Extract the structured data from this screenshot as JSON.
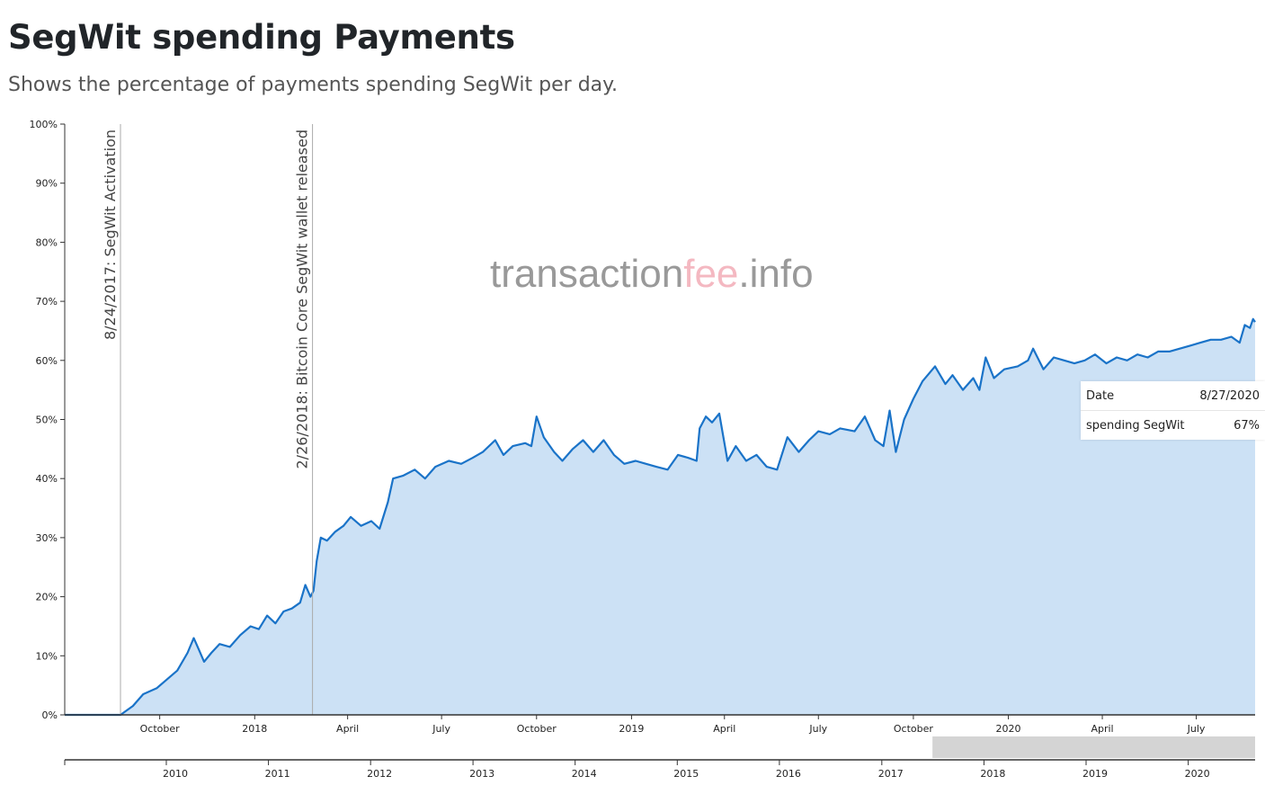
{
  "header": {
    "title": "SegWit spending Payments",
    "subtitle": "Shows the percentage of payments spending SegWit per day."
  },
  "watermark": {
    "part1": "transaction",
    "part2": "fee",
    "part3": ".info",
    "color_main": "#999999",
    "color_accent": "#f4b8c1"
  },
  "tooltip": {
    "date_label": "Date",
    "date_value": "8/27/2020",
    "series_label": "spending SegWit",
    "series_value": "67%"
  },
  "chart_data": {
    "type": "area",
    "title": "SegWit spending Payments",
    "subtitle": "Shows the percentage of payments spending SegWit per day.",
    "xlabel": "",
    "ylabel": "",
    "xlim": [
      "2017-07-01",
      "2020-08-27"
    ],
    "ylim": [
      0,
      100
    ],
    "grid": false,
    "y_ticks": [
      "0%",
      "10%",
      "20%",
      "30%",
      "40%",
      "50%",
      "60%",
      "70%",
      "80%",
      "90%",
      "100%"
    ],
    "x_ticks": [
      {
        "date": "2017-10-01",
        "label": "October"
      },
      {
        "date": "2018-01-01",
        "label": "2018"
      },
      {
        "date": "2018-04-01",
        "label": "April"
      },
      {
        "date": "2018-07-01",
        "label": "July"
      },
      {
        "date": "2018-10-01",
        "label": "October"
      },
      {
        "date": "2019-01-01",
        "label": "2019"
      },
      {
        "date": "2019-04-01",
        "label": "April"
      },
      {
        "date": "2019-07-01",
        "label": "July"
      },
      {
        "date": "2019-10-01",
        "label": "October"
      },
      {
        "date": "2020-01-01",
        "label": "2020"
      },
      {
        "date": "2020-04-01",
        "label": "April"
      },
      {
        "date": "2020-07-01",
        "label": "July"
      }
    ],
    "navigator": {
      "ticks": [
        "2010",
        "2011",
        "2012",
        "2013",
        "2014",
        "2015",
        "2016",
        "2017",
        "2018",
        "2019",
        "2020"
      ],
      "range": [
        "2009-01-03",
        "2020-08-27"
      ],
      "selected": [
        "2017-07-01",
        "2020-08-27"
      ]
    },
    "events": [
      {
        "date": "2017-08-24",
        "label": "8/24/2017: SegWit Activation"
      },
      {
        "date": "2018-02-26",
        "label": "2/26/2018: Bitcoin Core SegWit wallet released"
      }
    ],
    "series": [
      {
        "name": "spending SegWit",
        "color": "#1a73c8",
        "fill": "#cce1f5",
        "points": [
          [
            "2017-07-01",
            0
          ],
          [
            "2017-08-24",
            0
          ],
          [
            "2017-09-05",
            1.5
          ],
          [
            "2017-09-15",
            3.5
          ],
          [
            "2017-09-28",
            4.5
          ],
          [
            "2017-10-08",
            6
          ],
          [
            "2017-10-18",
            7.5
          ],
          [
            "2017-10-28",
            10.5
          ],
          [
            "2017-11-03",
            13
          ],
          [
            "2017-11-08",
            11
          ],
          [
            "2017-11-13",
            9
          ],
          [
            "2017-11-20",
            10.5
          ],
          [
            "2017-11-28",
            12
          ],
          [
            "2017-12-08",
            11.5
          ],
          [
            "2017-12-18",
            13.5
          ],
          [
            "2017-12-28",
            15
          ],
          [
            "2018-01-05",
            14.5
          ],
          [
            "2018-01-13",
            16.8
          ],
          [
            "2018-01-21",
            15.5
          ],
          [
            "2018-01-29",
            17.5
          ],
          [
            "2018-02-06",
            18
          ],
          [
            "2018-02-14",
            19
          ],
          [
            "2018-02-19",
            22
          ],
          [
            "2018-02-24",
            20
          ],
          [
            "2018-02-27",
            21
          ],
          [
            "2018-03-02",
            26
          ],
          [
            "2018-03-06",
            30
          ],
          [
            "2018-03-12",
            29.5
          ],
          [
            "2018-03-20",
            31
          ],
          [
            "2018-03-28",
            32
          ],
          [
            "2018-04-04",
            33.5
          ],
          [
            "2018-04-14",
            32
          ],
          [
            "2018-04-24",
            32.8
          ],
          [
            "2018-05-02",
            31.5
          ],
          [
            "2018-05-10",
            36
          ],
          [
            "2018-05-15",
            40
          ],
          [
            "2018-05-25",
            40.5
          ],
          [
            "2018-06-05",
            41.5
          ],
          [
            "2018-06-15",
            40
          ],
          [
            "2018-06-25",
            42
          ],
          [
            "2018-07-08",
            43
          ],
          [
            "2018-07-20",
            42.5
          ],
          [
            "2018-07-31",
            43.5
          ],
          [
            "2018-08-10",
            44.5
          ],
          [
            "2018-08-22",
            46.5
          ],
          [
            "2018-08-30",
            44
          ],
          [
            "2018-09-08",
            45.5
          ],
          [
            "2018-09-20",
            46
          ],
          [
            "2018-09-26",
            45.5
          ],
          [
            "2018-10-01",
            50.5
          ],
          [
            "2018-10-08",
            47
          ],
          [
            "2018-10-18",
            44.5
          ],
          [
            "2018-10-26",
            43
          ],
          [
            "2018-11-05",
            45
          ],
          [
            "2018-11-15",
            46.5
          ],
          [
            "2018-11-25",
            44.5
          ],
          [
            "2018-12-05",
            46.5
          ],
          [
            "2018-12-15",
            44
          ],
          [
            "2018-12-25",
            42.5
          ],
          [
            "2019-01-05",
            43
          ],
          [
            "2019-01-15",
            42.5
          ],
          [
            "2019-01-25",
            42
          ],
          [
            "2019-02-05",
            41.5
          ],
          [
            "2019-02-15",
            44
          ],
          [
            "2019-02-25",
            43.5
          ],
          [
            "2019-03-05",
            43
          ],
          [
            "2019-03-08",
            48.5
          ],
          [
            "2019-03-14",
            50.5
          ],
          [
            "2019-03-20",
            49.5
          ],
          [
            "2019-03-27",
            51
          ],
          [
            "2019-04-04",
            43
          ],
          [
            "2019-04-12",
            45.5
          ],
          [
            "2019-04-22",
            43
          ],
          [
            "2019-05-02",
            44
          ],
          [
            "2019-05-12",
            42
          ],
          [
            "2019-05-22",
            41.5
          ],
          [
            "2019-06-01",
            47
          ],
          [
            "2019-06-12",
            44.5
          ],
          [
            "2019-06-22",
            46.5
          ],
          [
            "2019-07-01",
            48
          ],
          [
            "2019-07-12",
            47.5
          ],
          [
            "2019-07-22",
            48.5
          ],
          [
            "2019-08-05",
            48
          ],
          [
            "2019-08-15",
            50.5
          ],
          [
            "2019-08-25",
            46.5
          ],
          [
            "2019-09-02",
            45.5
          ],
          [
            "2019-09-08",
            51.5
          ],
          [
            "2019-09-14",
            44.5
          ],
          [
            "2019-09-22",
            50
          ],
          [
            "2019-10-01",
            53.5
          ],
          [
            "2019-10-10",
            56.5
          ],
          [
            "2019-10-22",
            59
          ],
          [
            "2019-11-01",
            56
          ],
          [
            "2019-11-08",
            57.5
          ],
          [
            "2019-11-18",
            55
          ],
          [
            "2019-11-28",
            57
          ],
          [
            "2019-12-04",
            55
          ],
          [
            "2019-12-10",
            60.5
          ],
          [
            "2019-12-18",
            57
          ],
          [
            "2019-12-28",
            58.5
          ],
          [
            "2020-01-10",
            59
          ],
          [
            "2020-01-20",
            60
          ],
          [
            "2020-01-25",
            62
          ],
          [
            "2020-02-04",
            58.5
          ],
          [
            "2020-02-14",
            60.5
          ],
          [
            "2020-02-24",
            60
          ],
          [
            "2020-03-05",
            59.5
          ],
          [
            "2020-03-15",
            60
          ],
          [
            "2020-03-25",
            61
          ],
          [
            "2020-04-05",
            59.5
          ],
          [
            "2020-04-15",
            60.5
          ],
          [
            "2020-04-25",
            60
          ],
          [
            "2020-05-05",
            61
          ],
          [
            "2020-05-15",
            60.5
          ],
          [
            "2020-05-25",
            61.5
          ],
          [
            "2020-06-05",
            61.5
          ],
          [
            "2020-06-15",
            62
          ],
          [
            "2020-06-25",
            62.5
          ],
          [
            "2020-07-05",
            63
          ],
          [
            "2020-07-15",
            63.5
          ],
          [
            "2020-07-25",
            63.5
          ],
          [
            "2020-08-04",
            64
          ],
          [
            "2020-08-12",
            63
          ],
          [
            "2020-08-17",
            66
          ],
          [
            "2020-08-22",
            65.5
          ],
          [
            "2020-08-25",
            67
          ],
          [
            "2020-08-27",
            66.5
          ]
        ]
      }
    ]
  }
}
